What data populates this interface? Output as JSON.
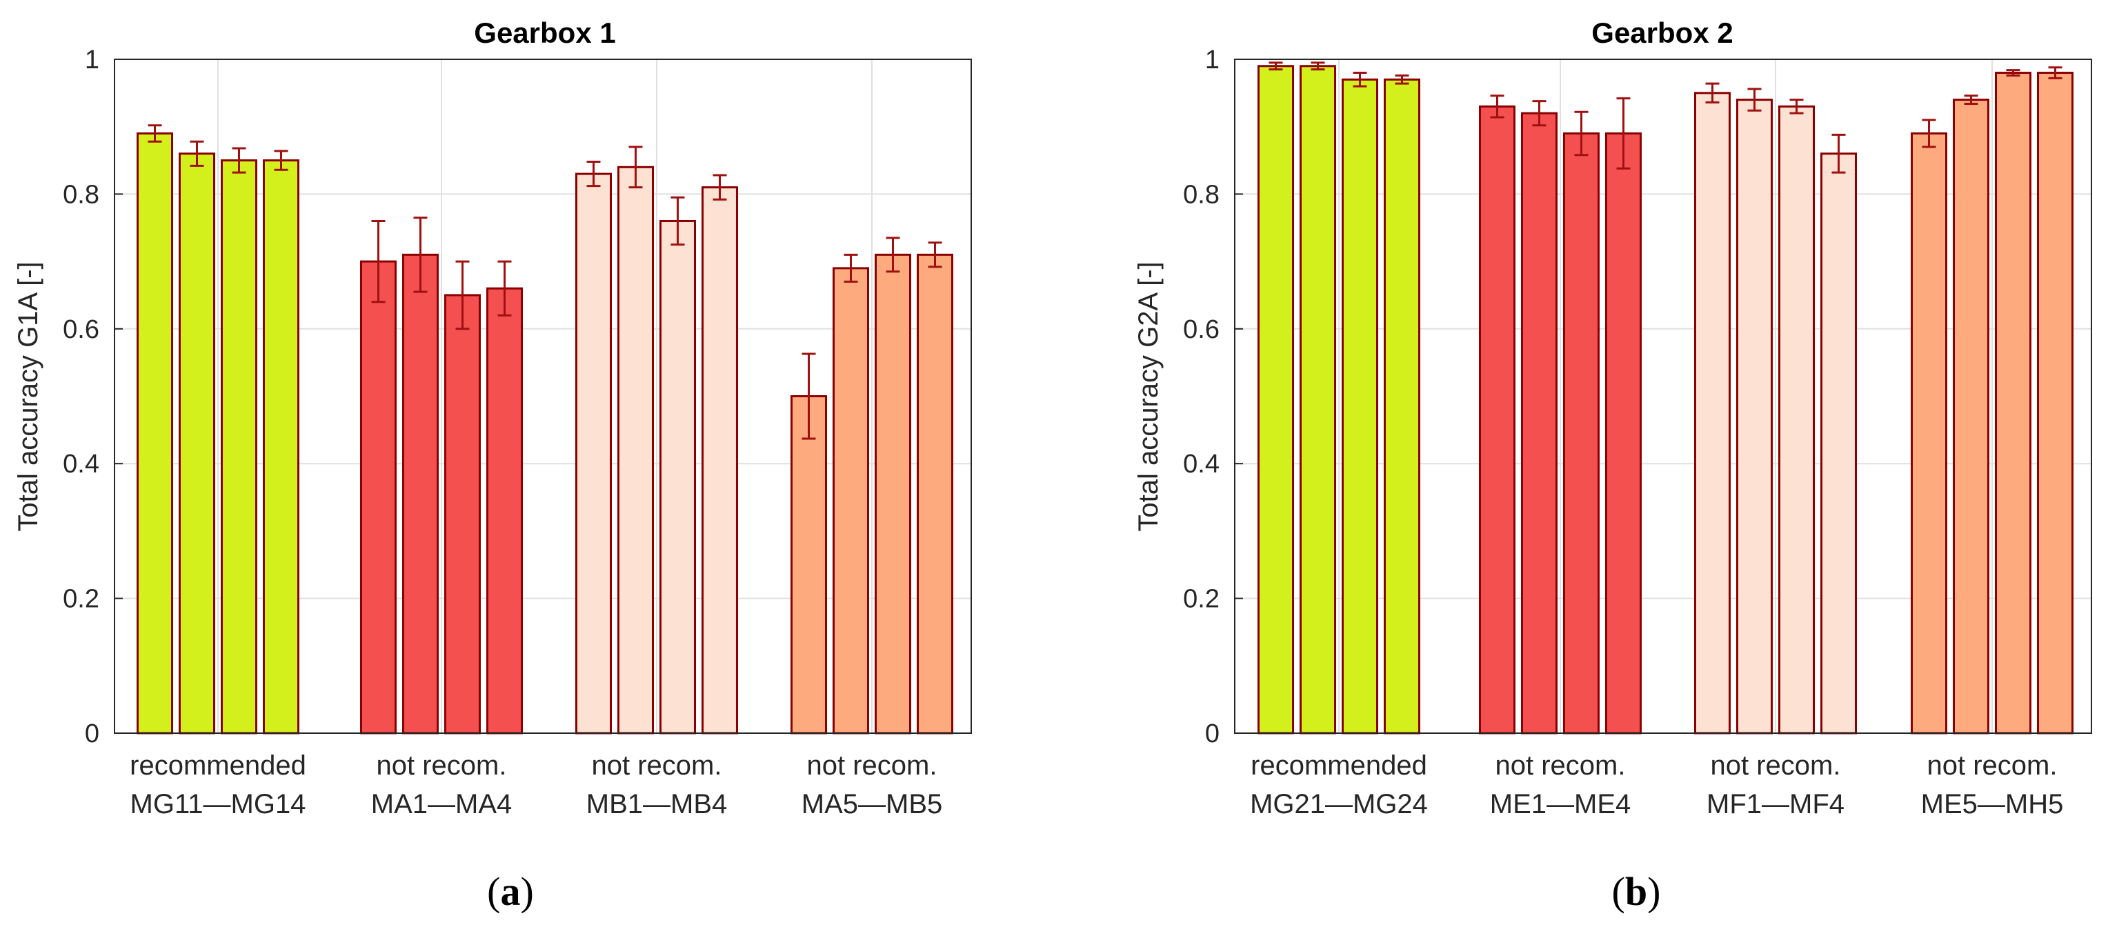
{
  "chart_data": [
    {
      "type": "bar",
      "title": "Gearbox 1",
      "ylabel": "Total accuracy G1A [-]",
      "ylim": [
        0,
        1
      ],
      "yticks": [
        "0",
        "0.2",
        "0.4",
        "0.6",
        "0.8",
        "1"
      ],
      "panel_label": "a",
      "groups": [
        {
          "label_line1": "recommended",
          "label_line2": "MG11—MG14",
          "color": "#d4f01c",
          "values": [
            0.89,
            0.86,
            0.85,
            0.85
          ],
          "errors": [
            0.012,
            0.018,
            0.018,
            0.014
          ]
        },
        {
          "label_line1": "not recom.",
          "label_line2": "MA1—MA4",
          "color": "#f55050",
          "values": [
            0.7,
            0.71,
            0.65,
            0.66
          ],
          "errors": [
            0.06,
            0.055,
            0.05,
            0.04
          ]
        },
        {
          "label_line1": "not recom.",
          "label_line2": "MB1—MB4",
          "color": "#fde1d2",
          "values": [
            0.83,
            0.84,
            0.76,
            0.81
          ],
          "errors": [
            0.018,
            0.03,
            0.035,
            0.018
          ]
        },
        {
          "label_line1": "not recom.",
          "label_line2": "MA5—MB5",
          "color": "#fdab7e",
          "values": [
            0.5,
            0.69,
            0.71,
            0.71
          ],
          "errors": [
            0.063,
            0.02,
            0.025,
            0.018
          ]
        }
      ]
    },
    {
      "type": "bar",
      "title": "Gearbox 2",
      "ylabel": "Total accuracy G2A [-]",
      "ylim": [
        0,
        1
      ],
      "yticks": [
        "0",
        "0.2",
        "0.4",
        "0.6",
        "0.8",
        "1"
      ],
      "panel_label": "b",
      "groups": [
        {
          "label_line1": "recommended",
          "label_line2": "MG21—MG24",
          "color": "#d4f01c",
          "values": [
            0.99,
            0.99,
            0.97,
            0.97
          ],
          "errors": [
            0.005,
            0.005,
            0.01,
            0.006
          ]
        },
        {
          "label_line1": "not recom.",
          "label_line2": "ME1—ME4",
          "color": "#f55050",
          "values": [
            0.93,
            0.92,
            0.89,
            0.89
          ],
          "errors": [
            0.016,
            0.018,
            0.032,
            0.052
          ]
        },
        {
          "label_line1": "not recom.",
          "label_line2": "MF1—MF4",
          "color": "#fde1d2",
          "values": [
            0.95,
            0.94,
            0.93,
            0.86
          ],
          "errors": [
            0.014,
            0.016,
            0.01,
            0.028
          ]
        },
        {
          "label_line1": "not recom.",
          "label_line2": "ME5—MH5",
          "color": "#fdab7e",
          "values": [
            0.89,
            0.94,
            0.98,
            0.98
          ],
          "errors": [
            0.02,
            0.006,
            0.004,
            0.008
          ]
        }
      ]
    }
  ],
  "style": {
    "bar_edge": "#8b0000",
    "error_bar": "#a01010",
    "grid": "#e0e0e0",
    "axis": "#262626"
  }
}
